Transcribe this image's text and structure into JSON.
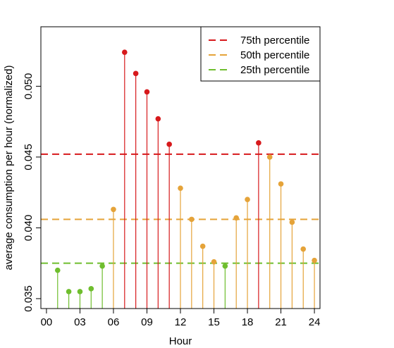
{
  "chart_data": {
    "type": "lollipop",
    "xlabel": "Hour",
    "ylabel": "average consumption per hour (normalized)",
    "xlim": [
      -0.5,
      24.5
    ],
    "ylim": [
      0.0343,
      0.0542
    ],
    "x_ticks": [
      0,
      3,
      6,
      9,
      12,
      15,
      18,
      21,
      24
    ],
    "x_tick_labels": [
      "00",
      "03",
      "06",
      "09",
      "12",
      "15",
      "18",
      "21",
      "24"
    ],
    "y_ticks": [
      0.035,
      0.04,
      0.045,
      0.05
    ],
    "y_tick_labels": [
      "0.035",
      "0.040",
      "0.045",
      "0.050"
    ],
    "grid": false,
    "legend_position": "top-right",
    "reference_lines": [
      {
        "name": "75th percentile",
        "value": 0.0452,
        "color": "#d7191c"
      },
      {
        "name": "50th percentile",
        "value": 0.0406,
        "color": "#e5a339"
      },
      {
        "name": "25th percentile",
        "value": 0.0375,
        "color": "#6fbe2e"
      }
    ],
    "colors": {
      "high": "#d7191c",
      "mid": "#e5a339",
      "low": "#6fbe2e"
    },
    "points": [
      {
        "x": 1,
        "y": 0.037,
        "group": "low"
      },
      {
        "x": 2,
        "y": 0.0355,
        "group": "low"
      },
      {
        "x": 3,
        "y": 0.0355,
        "group": "low"
      },
      {
        "x": 4,
        "y": 0.0357,
        "group": "low"
      },
      {
        "x": 5,
        "y": 0.0373,
        "group": "low"
      },
      {
        "x": 6,
        "y": 0.0413,
        "group": "mid"
      },
      {
        "x": 7,
        "y": 0.0524,
        "group": "high"
      },
      {
        "x": 8,
        "y": 0.0509,
        "group": "high"
      },
      {
        "x": 9,
        "y": 0.0496,
        "group": "high"
      },
      {
        "x": 10,
        "y": 0.0477,
        "group": "high"
      },
      {
        "x": 11,
        "y": 0.0459,
        "group": "high"
      },
      {
        "x": 12,
        "y": 0.0428,
        "group": "mid"
      },
      {
        "x": 13,
        "y": 0.0406,
        "group": "mid"
      },
      {
        "x": 14,
        "y": 0.0387,
        "group": "mid"
      },
      {
        "x": 15,
        "y": 0.0376,
        "group": "mid"
      },
      {
        "x": 16,
        "y": 0.0373,
        "group": "low"
      },
      {
        "x": 17,
        "y": 0.0407,
        "group": "mid"
      },
      {
        "x": 18,
        "y": 0.042,
        "group": "mid"
      },
      {
        "x": 19,
        "y": 0.046,
        "group": "high"
      },
      {
        "x": 20,
        "y": 0.045,
        "group": "mid"
      },
      {
        "x": 21,
        "y": 0.0431,
        "group": "mid"
      },
      {
        "x": 22,
        "y": 0.0404,
        "group": "mid"
      },
      {
        "x": 23,
        "y": 0.0385,
        "group": "mid"
      },
      {
        "x": 24,
        "y": 0.0377,
        "group": "mid"
      }
    ]
  }
}
